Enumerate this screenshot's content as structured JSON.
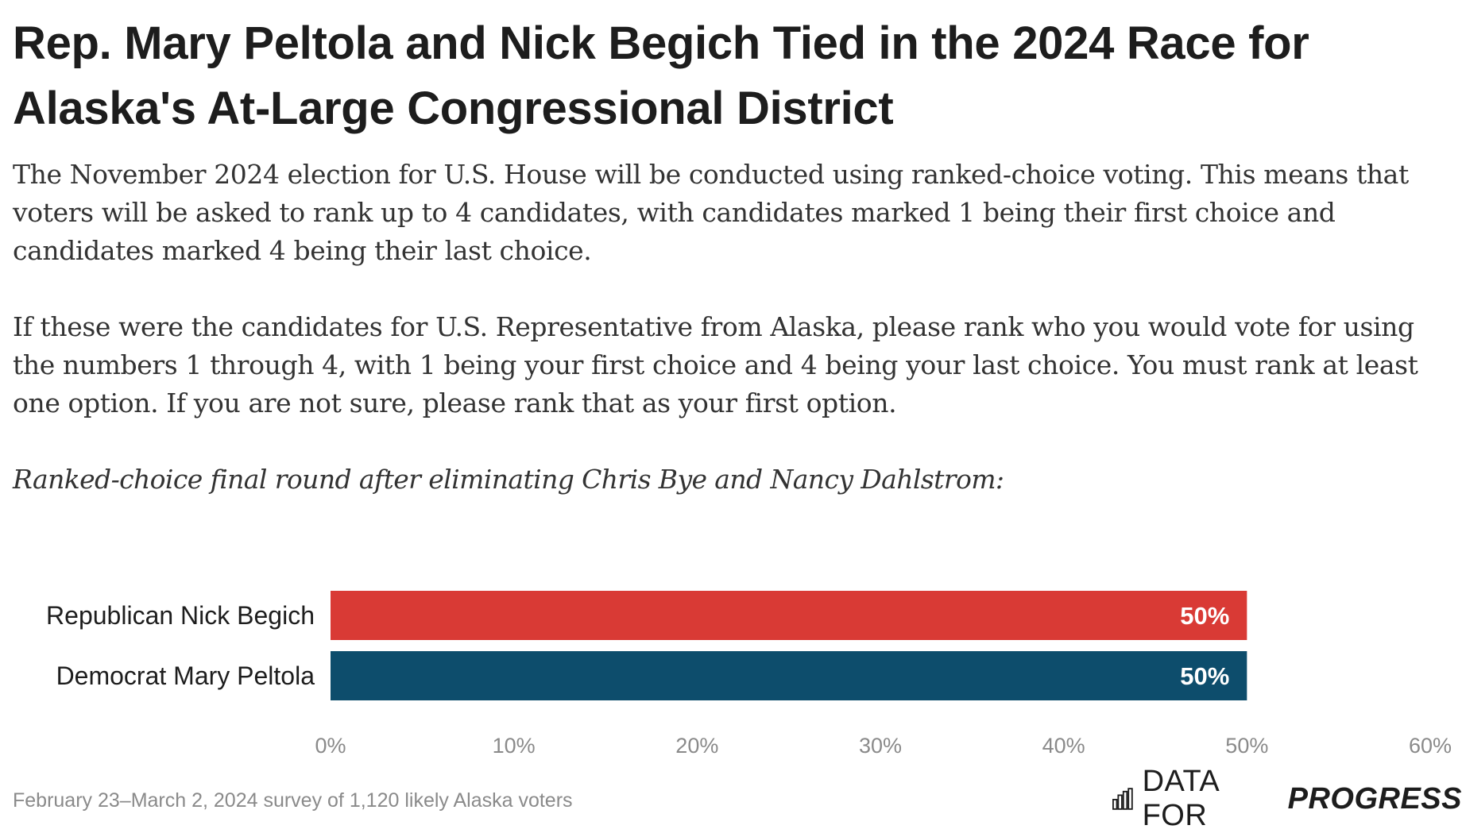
{
  "title": "Rep. Mary Peltola and Nick Begich Tied in the 2024 Race for Alaska's At-Large Congressional District",
  "paragraphs": [
    "The November 2024 election for U.S. House will be conducted using ranked-choice voting. This means that voters will be asked to rank up to 4 candidates, with candidates marked 1 being their first choice and candidates marked 4 being their last choice.",
    "If these were the candidates for U.S. Representative from Alaska, please rank who you would vote for using the numbers 1 through 4, with 1 being your first choice and 4 being your last choice. You must rank at least one option. If you are not sure, please rank that as your first option."
  ],
  "subtitle": "Ranked-choice final round after eliminating Chris Bye and Nancy Dahlstrom:",
  "chart_data": {
    "type": "bar",
    "orientation": "horizontal",
    "categories": [
      "Republican Nick Begich",
      "Democrat Mary Peltola"
    ],
    "values": [
      50,
      50
    ],
    "value_labels": [
      "50%",
      "50%"
    ],
    "colors": [
      "#d93a35",
      "#0d4d6c"
    ],
    "xlim": [
      0,
      60
    ],
    "xticks": [
      0,
      10,
      20,
      30,
      40,
      50,
      60
    ],
    "xtick_labels": [
      "0%",
      "10%",
      "20%",
      "30%",
      "40%",
      "50%",
      "60%"
    ],
    "grid": false,
    "legend": "none"
  },
  "footer": {
    "source": "February 23–March 2, 2024 survey of 1,120 likely Alaska voters",
    "brand_part1": "DATA FOR",
    "brand_part2": "PROGRESS",
    "brand_icon": "bar-chart-icon"
  }
}
